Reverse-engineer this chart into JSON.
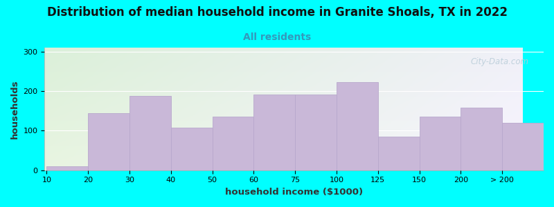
{
  "title": "Distribution of median household income in Granite Shoals, TX in 2022",
  "subtitle": "All residents",
  "xlabel": "household income ($1000)",
  "ylabel": "households",
  "bar_labels": [
    "10",
    "20",
    "30",
    "40",
    "50",
    "60",
    "75",
    "100",
    "125",
    "150",
    "200",
    "> 200"
  ],
  "bar_heights": [
    10,
    145,
    188,
    107,
    135,
    192,
    192,
    222,
    85,
    135,
    158,
    120
  ],
  "bar_color": "#c9b8d8",
  "bar_edge_color": "#b8a8cc",
  "yticks": [
    0,
    100,
    200,
    300
  ],
  "ylim": [
    0,
    310
  ],
  "background_color": "#00ffff",
  "grad_color_topleft": "#daf0d8",
  "grad_color_topright": "#f0f0f8",
  "grad_color_bottomleft": "#e8f5e0",
  "grad_color_bottomright": "#f5f5fe",
  "title_fontsize": 12,
  "subtitle_fontsize": 10,
  "title_color": "#111111",
  "subtitle_color": "#3399bb",
  "axis_label_fontsize": 9.5,
  "axis_label_color": "#333333",
  "watermark_text": "City-Data.com",
  "watermark_color": "#b8ccd8"
}
